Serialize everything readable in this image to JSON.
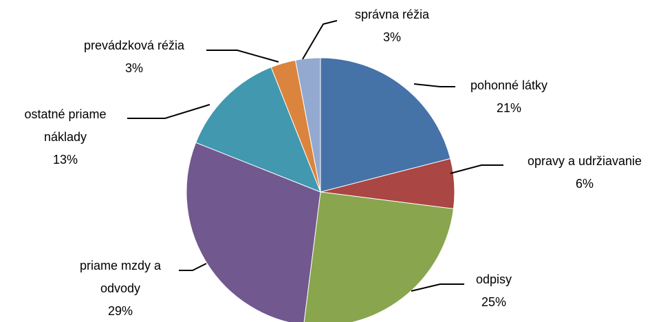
{
  "chart_data": {
    "type": "pie",
    "categories": [
      "pohonné látky",
      "opravy a udržiavanie",
      "odpisy",
      "priame mzdy a odvody",
      "ostatné priame náklady",
      "prevádzková réžia",
      "správna réžia"
    ],
    "values": [
      21,
      6,
      25,
      29,
      13,
      3,
      3
    ],
    "value_labels": [
      "21%",
      "6%",
      "25%",
      "29%",
      "13%",
      "3%",
      "3%"
    ],
    "colors": [
      "#4572a7",
      "#aa4643",
      "#89a54e",
      "#71588f",
      "#4198af",
      "#db843d",
      "#93a9cf"
    ]
  }
}
